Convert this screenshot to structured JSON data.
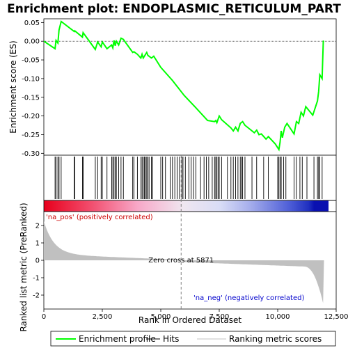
{
  "chart_data": {
    "type": "line",
    "title": "Enrichment plot: ENDOPLASMIC_RETICULUM_PART",
    "xlabel": "Rank in Ordered Dataset",
    "ylabel_top": "Enrichment score (ES)",
    "ylabel_bottom": "Ranked list metric (PreRanked)",
    "xlim": [
      0,
      12500
    ],
    "ylim_top": [
      -0.305,
      0.06
    ],
    "ylim_bottom": [
      -2.8,
      2.8
    ],
    "xticks": [
      0,
      2500,
      5000,
      7500,
      10000,
      12500
    ],
    "xtick_labels": [
      "0",
      "2,500",
      "5,000",
      "7,500",
      "10,000",
      "12,500"
    ],
    "yticks_top": [
      0.05,
      0.0,
      -0.05,
      -0.1,
      -0.15,
      -0.2,
      -0.25,
      -0.3
    ],
    "ytick_labels_top": [
      "0.05",
      "0.00",
      "-0.05",
      "-0.10",
      "-0.15",
      "-0.20",
      "-0.25",
      "-0.30"
    ],
    "yticks_bottom": [
      2,
      1,
      0,
      -1,
      -2
    ],
    "ytick_labels_bottom": [
      "2",
      "1",
      "0",
      "-1",
      "-2"
    ],
    "n_genes": 11980,
    "zero_cross": 5871,
    "zero_cross_label": "Zero cross at 5871",
    "pos_label": "'na_pos' (positively correlated)",
    "neg_label": "'na_neg' (negatively correlated)",
    "series": [
      {
        "name": "Enrichment profile",
        "color": "#00ff00",
        "x": [
          0,
          480,
          520,
          600,
          650,
          740,
          1300,
          1320,
          1650,
          1680,
          2200,
          2300,
          2450,
          2500,
          2700,
          2900,
          2950,
          3000,
          3050,
          3100,
          3200,
          3300,
          3400,
          3800,
          3850,
          4000,
          4150,
          4200,
          4250,
          4300,
          4400,
          4450,
          4600,
          4700,
          5000,
          5500,
          6000,
          6500,
          7000,
          7300,
          7350,
          7400,
          7500,
          7600,
          8000,
          8100,
          8200,
          8300,
          8400,
          8500,
          8600,
          9000,
          9100,
          9200,
          9300,
          9500,
          9600,
          9900,
          10050,
          10100,
          10150,
          10200,
          10300,
          10400,
          10700,
          10800,
          10900,
          11000,
          11100,
          11200,
          11500,
          11700,
          11750,
          11800,
          11900,
          11950,
          11980
        ],
        "y": [
          0.0,
          -0.02,
          0.002,
          -0.005,
          0.03,
          0.053,
          0.026,
          0.028,
          0.011,
          0.023,
          -0.022,
          -0.002,
          -0.015,
          -0.002,
          -0.02,
          -0.01,
          -0.018,
          0.002,
          -0.012,
          0.0,
          -0.01,
          0.008,
          0.005,
          -0.03,
          -0.028,
          -0.035,
          -0.045,
          -0.035,
          -0.045,
          -0.04,
          -0.03,
          -0.038,
          -0.045,
          -0.04,
          -0.07,
          -0.105,
          -0.145,
          -0.178,
          -0.212,
          -0.215,
          -0.212,
          -0.218,
          -0.2,
          -0.21,
          -0.232,
          -0.24,
          -0.23,
          -0.24,
          -0.22,
          -0.215,
          -0.225,
          -0.245,
          -0.238,
          -0.25,
          -0.248,
          -0.262,
          -0.255,
          -0.275,
          -0.29,
          -0.27,
          -0.24,
          -0.258,
          -0.23,
          -0.22,
          -0.248,
          -0.215,
          -0.22,
          -0.19,
          -0.2,
          -0.175,
          -0.198,
          -0.16,
          -0.135,
          -0.09,
          -0.1,
          0.0,
          0.0
        ]
      }
    ],
    "hits": [
      480,
      520,
      600,
      650,
      740,
      1300,
      1320,
      1650,
      1680,
      2200,
      2300,
      2450,
      2500,
      2700,
      2900,
      2950,
      3000,
      3050,
      3100,
      3200,
      3300,
      3400,
      3800,
      3850,
      4000,
      4150,
      4200,
      4250,
      4300,
      4350,
      4400,
      4450,
      4500,
      4600,
      4650,
      5000,
      5080,
      5200,
      5400,
      5500,
      5600,
      5700,
      5800,
      5900,
      5950,
      6050,
      6200,
      6300,
      6400,
      6500,
      6700,
      6850,
      6950,
      7050,
      7200,
      7300,
      7350,
      7400,
      7450,
      7500,
      7600,
      7850,
      8000,
      8100,
      8200,
      8300,
      8400,
      8450,
      8500,
      8600,
      8900,
      9100,
      9400,
      9600,
      10000,
      10050,
      10100,
      10150,
      10250,
      10350,
      10700,
      10800,
      10950,
      11050,
      11250,
      11550,
      11700,
      11750,
      11800,
      11900
    ],
    "legend": [
      {
        "label": "Enrichment profile",
        "color": "#00ff00"
      },
      {
        "label": "Hits",
        "color": "#000000"
      },
      {
        "label": "Ranking metric scores",
        "color": "#c0c0c0"
      }
    ]
  }
}
